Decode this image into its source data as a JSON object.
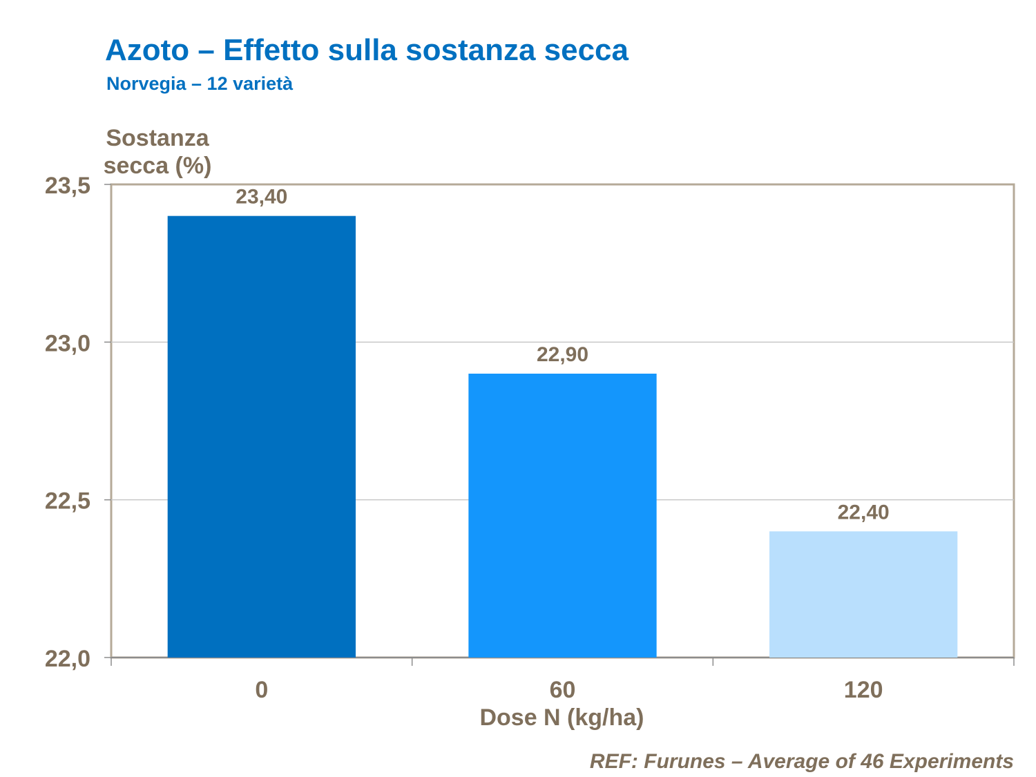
{
  "title": "Azoto – Effetto sulla sostanza secca",
  "subtitle": "Norvegia – 12 varietà",
  "reference": "REF: Furunes – Average of 46 Experiments",
  "colors": {
    "title": "#0070c0",
    "axis_text": "#7f6f5b",
    "frame": "#b5aa98",
    "gridline": "#c8c8c8"
  },
  "chart_data": {
    "type": "bar",
    "ylabel": "Sostanza secca (%)",
    "xlabel": "Dose N (kg/ha)",
    "categories": [
      "0",
      "60",
      "120"
    ],
    "values": [
      23.4,
      22.9,
      22.4
    ],
    "data_labels": [
      "23,40",
      "22,90",
      "22,40"
    ],
    "bar_colors": [
      "#0070c0",
      "#1496fc",
      "#b9dffd"
    ],
    "ylim": [
      22.0,
      23.5
    ],
    "yticks": [
      22.0,
      22.5,
      23.0,
      23.5
    ],
    "ytick_labels": [
      "22,0",
      "22,5",
      "23,0",
      "23,5"
    ],
    "grid": true,
    "legend": "none"
  }
}
